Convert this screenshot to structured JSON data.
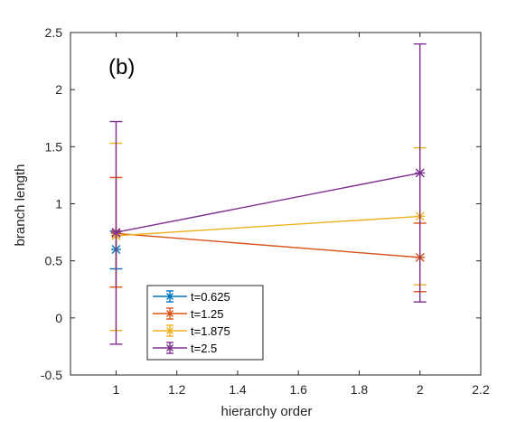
{
  "chart_data": {
    "type": "line",
    "panel_label": "(b)",
    "title": "",
    "xlabel": "hierarchy order",
    "ylabel": "branch length",
    "xlim": [
      0.85,
      2.2
    ],
    "ylim": [
      -0.5,
      2.5
    ],
    "x_ticks": [
      1,
      1.2,
      1.4,
      1.6,
      1.8,
      2,
      2.2
    ],
    "x_tick_labels": [
      "1",
      "1.2",
      "1.4",
      "1.6",
      "1.8",
      "2",
      "2.2"
    ],
    "y_ticks": [
      -0.5,
      0,
      0.5,
      1,
      1.5,
      2,
      2.5
    ],
    "y_tick_labels": [
      "-0.5",
      "0",
      "0.5",
      "1",
      "1.5",
      "2",
      "2.5"
    ],
    "grid": false,
    "legend_position": "bottom-left",
    "series": [
      {
        "name": "t=0.625",
        "color": "#0072BD",
        "x": [
          1
        ],
        "y": [
          0.6
        ],
        "err_low": [
          0.43
        ],
        "err_high": [
          0.76
        ]
      },
      {
        "name": "t=1.25",
        "color": "#D95319",
        "x": [
          1,
          2
        ],
        "y": [
          0.74,
          0.53
        ],
        "err_low": [
          0.27,
          0.23
        ],
        "err_high": [
          1.23,
          0.83
        ]
      },
      {
        "name": "t=1.875",
        "color": "#EDB120",
        "x": [
          1,
          2
        ],
        "y": [
          0.72,
          0.89
        ],
        "err_low": [
          -0.11,
          0.29
        ],
        "err_high": [
          1.53,
          1.49
        ]
      },
      {
        "name": "t=2.5",
        "color": "#7E2F8E",
        "x": [
          1,
          2
        ],
        "y": [
          0.75,
          1.27
        ],
        "err_low": [
          -0.23,
          0.14
        ],
        "err_high": [
          1.72,
          2.4
        ]
      }
    ]
  }
}
